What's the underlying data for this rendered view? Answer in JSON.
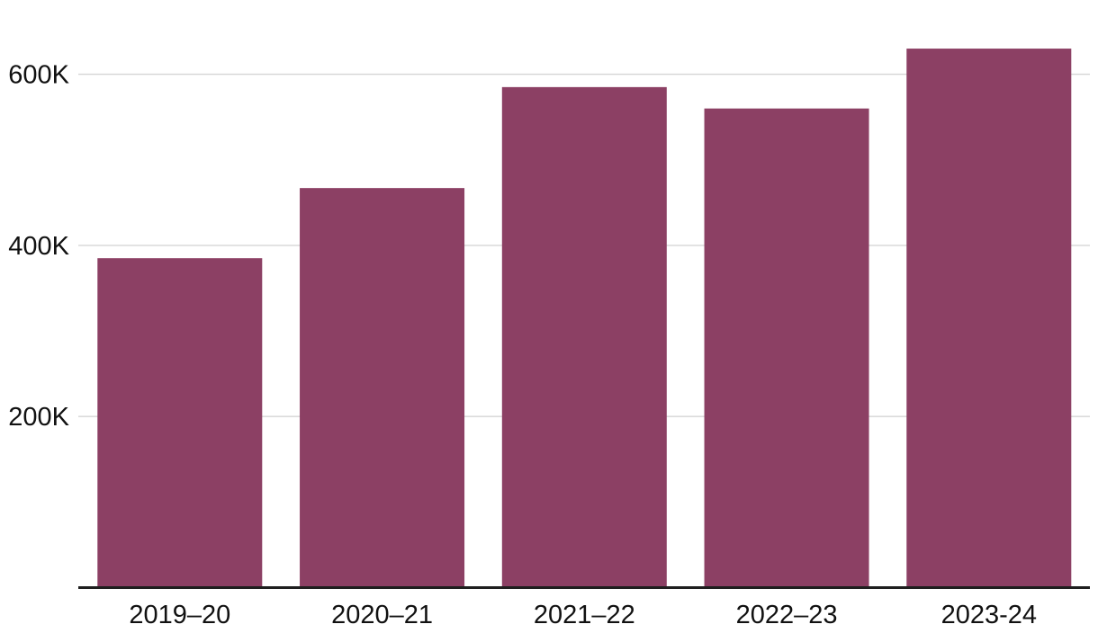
{
  "chart_data": {
    "type": "bar",
    "categories": [
      "2019–20",
      "2020–21",
      "2021–22",
      "2022–23",
      "2023-24"
    ],
    "values": [
      385000,
      467000,
      585000,
      560000,
      630000
    ],
    "ylim": [
      0,
      660000
    ],
    "yticks": [
      {
        "value": 200000,
        "label": "200K"
      },
      {
        "value": 400000,
        "label": "400K"
      },
      {
        "value": 600000,
        "label": "600K"
      }
    ],
    "grid": true,
    "legend": false,
    "colors": {
      "bar": "#8C4064",
      "gridline": "#D5D5D5",
      "axis_line": "#1F1F1F",
      "tick_text": "#111111",
      "background": "#FFFFFF"
    }
  }
}
